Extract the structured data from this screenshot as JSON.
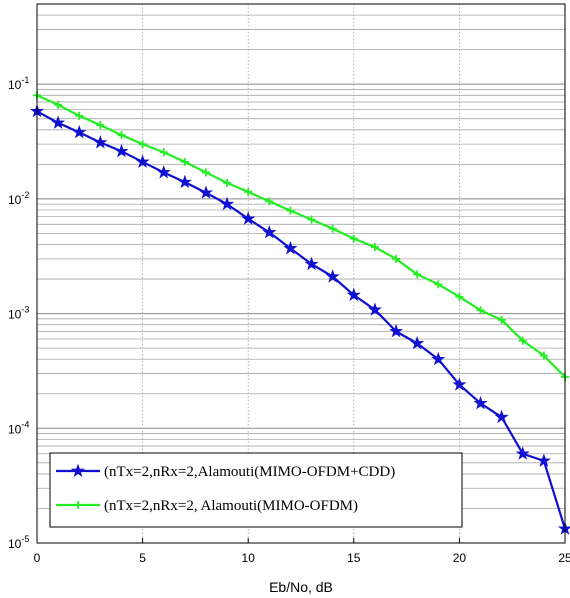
{
  "chart_data": {
    "type": "line",
    "xlabel": "Eb/No, dB",
    "ylabel": "",
    "title": "",
    "xlim": [
      0,
      25
    ],
    "ylim": [
      1e-05,
      0.5
    ],
    "yscale": "log",
    "grid": true,
    "legend_position": "bottom-left",
    "x_ticks": [
      "0",
      "5",
      "10",
      "15",
      "20",
      "25"
    ],
    "y_ticks": [
      {
        "base": "10",
        "exp": "-1",
        "value": 0.1
      },
      {
        "base": "10",
        "exp": "-2",
        "value": 0.01
      },
      {
        "base": "10",
        "exp": "-3",
        "value": 0.001
      },
      {
        "base": "10",
        "exp": "-4",
        "value": 0.0001
      },
      {
        "base": "10",
        "exp": "-5",
        "value": 1e-05
      }
    ],
    "x": [
      0,
      1,
      2,
      3,
      4,
      5,
      6,
      7,
      8,
      9,
      10,
      11,
      12,
      13,
      14,
      15,
      16,
      17,
      18,
      19,
      20,
      21,
      22,
      23,
      24,
      25
    ],
    "series": [
      {
        "name": "(nTx=2,nRx=2,Alamouti(MIMO-OFDM+CDD)",
        "color": "#1010d0",
        "marker": "star",
        "values": [
          0.058,
          0.046,
          0.038,
          0.031,
          0.026,
          0.021,
          0.017,
          0.014,
          0.0113,
          0.009,
          0.0067,
          0.0051,
          0.0037,
          0.0027,
          0.0021,
          0.00145,
          0.00108,
          0.0007,
          0.00055,
          0.0004,
          0.00024,
          0.000165,
          0.000125,
          6e-05,
          5.2e-05,
          1.33e-05
        ]
      },
      {
        "name": "(nTx=2,nRx=2, Alamouti(MIMO-OFDM)",
        "color": "#22ee22",
        "marker": "plus",
        "values": [
          0.08,
          0.066,
          0.053,
          0.044,
          0.036,
          0.03,
          0.0255,
          0.021,
          0.017,
          0.0138,
          0.0115,
          0.0095,
          0.0079,
          0.0066,
          0.0055,
          0.0045,
          0.0038,
          0.003,
          0.0022,
          0.0018,
          0.0014,
          0.00107,
          0.00088,
          0.00058,
          0.00043,
          0.00028
        ]
      }
    ]
  }
}
